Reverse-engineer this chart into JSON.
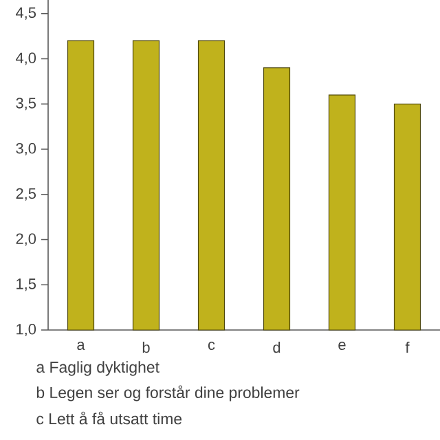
{
  "chart_data": {
    "type": "bar",
    "categories": [
      "a",
      "b",
      "c",
      "d",
      "e",
      "f"
    ],
    "values": [
      4.2,
      4.2,
      4.2,
      3.9,
      3.6,
      3.5
    ],
    "color": "#c0b21c",
    "ylim": [
      1.0,
      4.65
    ],
    "yticks": [
      {
        "value": 1.0,
        "label": "1,0"
      },
      {
        "value": 1.5,
        "label": "1,5"
      },
      {
        "value": 2.0,
        "label": "2,0"
      },
      {
        "value": 2.5,
        "label": "2,5"
      },
      {
        "value": 3.0,
        "label": "3,0"
      },
      {
        "value": 3.5,
        "label": "3,5"
      },
      {
        "value": 4.0,
        "label": "4,0"
      },
      {
        "value": 4.5,
        "label": "4,5"
      }
    ],
    "grid": false,
    "annotations": [
      "a  Faglig dyktighet",
      "b  Legen ser og forstår dine problemer",
      "c  Lett å få utsatt time"
    ]
  }
}
